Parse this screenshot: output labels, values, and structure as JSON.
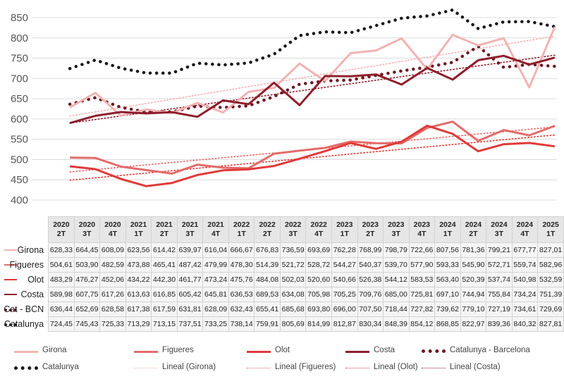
{
  "chart_data": {
    "type": "line",
    "categories": [
      {
        "year": "2020",
        "quarter": "2T"
      },
      {
        "year": "2020",
        "quarter": "3T"
      },
      {
        "year": "2020",
        "quarter": "4T"
      },
      {
        "year": "2021",
        "quarter": "1T"
      },
      {
        "year": "2021",
        "quarter": "2T"
      },
      {
        "year": "2021",
        "quarter": "3T"
      },
      {
        "year": "2021",
        "quarter": "4T"
      },
      {
        "year": "2022",
        "quarter": "1T"
      },
      {
        "year": "2022",
        "quarter": "2T"
      },
      {
        "year": "2022",
        "quarter": "3T"
      },
      {
        "year": "2022",
        "quarter": "4T"
      },
      {
        "year": "2023",
        "quarter": "1T"
      },
      {
        "year": "2023",
        "quarter": "2T"
      },
      {
        "year": "2023",
        "quarter": "3T"
      },
      {
        "year": "2023",
        "quarter": "4T"
      },
      {
        "year": "2024",
        "quarter": "1T"
      },
      {
        "year": "2024",
        "quarter": "2T"
      },
      {
        "year": "2024",
        "quarter": "3T"
      },
      {
        "year": "2024",
        "quarter": "4T"
      },
      {
        "year": "2025",
        "quarter": "1T"
      }
    ],
    "ylim": [
      400,
      850
    ],
    "yticks": [
      "400",
      "450",
      "500",
      "550",
      "600",
      "650",
      "700",
      "750",
      "800",
      "850"
    ],
    "grid": true,
    "legend_position": "bottom",
    "series": [
      {
        "name": "Girona",
        "table_label": "Girona",
        "color": "#f2b3b3",
        "style": "solid",
        "trend": true,
        "values": [
          628.33,
          664.45,
          608.09,
          623.56,
          614.42,
          639.97,
          616.04,
          666.67,
          676.83,
          736.59,
          693.69,
          762.28,
          768.99,
          798.79,
          722.66,
          807.56,
          781.36,
          799.21,
          677.77,
          827.01
        ],
        "labels": [
          "628,33",
          "664,45",
          "608,09",
          "623,56",
          "614,42",
          "639,97",
          "616,04",
          "666,67",
          "676,83",
          "736,59",
          "693,69",
          "762,28",
          "768,99",
          "798,79",
          "722,66",
          "807,56",
          "781,36",
          "799,21",
          "677,77",
          "827,01"
        ]
      },
      {
        "name": "Figueres",
        "table_label": "Figueres",
        "color": "#e36b6b",
        "style": "solid",
        "trend": true,
        "values": [
          504.61,
          503.9,
          482.59,
          473.88,
          465.41,
          487.42,
          479.99,
          478.3,
          514.39,
          521.72,
          528.72,
          544.27,
          540.37,
          539.7,
          577.9,
          593.33,
          545.9,
          572.71,
          559.74,
          582.96
        ],
        "labels": [
          "504,61",
          "503,90",
          "482,59",
          "473,88",
          "465,41",
          "487,42",
          "479,99",
          "478,30",
          "514,39",
          "521,72",
          "528,72",
          "544,27",
          "540,37",
          "539,70",
          "577,90",
          "593,33",
          "545,90",
          "572,71",
          "559,74",
          "582,96"
        ]
      },
      {
        "name": "Olot",
        "table_label": "Olot",
        "color": "#e03a3a",
        "style": "solid",
        "trend": true,
        "values": [
          483.29,
          476.27,
          452.06,
          434.22,
          442.3,
          461.77,
          473.24,
          475.76,
          484.08,
          502.03,
          520.6,
          540.66,
          526.38,
          544.12,
          583.53,
          563.4,
          520.39,
          537.74,
          540.98,
          532.59
        ],
        "labels": [
          "483,29",
          "476,27",
          "452,06",
          "434,22",
          "442,30",
          "461,77",
          "473,24",
          "475,76",
          "484,08",
          "502,03",
          "520,60",
          "540,66",
          "526,38",
          "544,12",
          "583,53",
          "563,40",
          "520,39",
          "537,74",
          "540,98",
          "532,59"
        ]
      },
      {
        "name": "Costa",
        "table_label": "Costa",
        "color": "#8e1f2c",
        "style": "solid",
        "trend": true,
        "values": [
          589.98,
          607.75,
          617.26,
          613.63,
          616.85,
          605.42,
          645.81,
          636.53,
          689.53,
          634.08,
          705.98,
          705.25,
          709.76,
          685.0,
          725.81,
          697.1,
          744.94,
          755.84,
          734.24,
          751.39
        ],
        "labels": [
          "589,98",
          "607,75",
          "617,26",
          "613,63",
          "616,85",
          "605,42",
          "645,81",
          "636,53",
          "689,53",
          "634,08",
          "705,98",
          "705,25",
          "709,76",
          "685,00",
          "725,81",
          "697,10",
          "744,94",
          "755,84",
          "734,24",
          "751,39"
        ]
      },
      {
        "name": "Catalunya - Barcelona",
        "table_label": "Cat - BCN",
        "color": "#6e1a24",
        "style": "dotted",
        "trend": false,
        "values": [
          636.44,
          652.69,
          628.58,
          617.38,
          617.59,
          631.81,
          628.09,
          632.43,
          655.41,
          685.68,
          693.8,
          696.0,
          707.5,
          718.44,
          727.82,
          739.62,
          779.1,
          727.19,
          734.61,
          729.69
        ],
        "labels": [
          "636,44",
          "652,69",
          "628,58",
          "617,38",
          "617,59",
          "631,81",
          "628,09",
          "632,43",
          "655,41",
          "685,68",
          "693,80",
          "696,00",
          "707,50",
          "718,44",
          "727,82",
          "739,62",
          "779,10",
          "727,19",
          "734,61",
          "729,69"
        ]
      },
      {
        "name": "Catalunya",
        "table_label": "Catalunya",
        "color": "#1a1a1a",
        "style": "dotted",
        "trend": false,
        "values": [
          724.45,
          745.43,
          725.33,
          713.29,
          713.15,
          737.51,
          733.25,
          738.14,
          759.91,
          805.69,
          814.99,
          812.87,
          830.34,
          848.39,
          854.12,
          868.85,
          822.97,
          839.36,
          840.32,
          827.81
        ],
        "labels": [
          "724,45",
          "745,43",
          "725,33",
          "713,29",
          "713,15",
          "737,51",
          "733,25",
          "738,14",
          "759,91",
          "805,69",
          "814,99",
          "812,87",
          "830,34",
          "848,39",
          "854,12",
          "868,85",
          "822,97",
          "839,36",
          "840,32",
          "827,81"
        ]
      }
    ]
  },
  "legend": [
    {
      "label": "Girona",
      "color": "#f2b3b3",
      "style": "solid"
    },
    {
      "label": "Figueres",
      "color": "#e36b6b",
      "style": "solid"
    },
    {
      "label": "Olot",
      "color": "#e03a3a",
      "style": "solid"
    },
    {
      "label": "Costa",
      "color": "#8e1f2c",
      "style": "solid"
    },
    {
      "label": "Catalunya - Barcelona",
      "color": "#6e1a24",
      "style": "dotted"
    },
    {
      "label": "Catalunya",
      "color": "#1a1a1a",
      "style": "dotted"
    },
    {
      "label": "Lineal (Girona)",
      "color": "#f2b3b3",
      "style": "trend"
    },
    {
      "label": "Lineal (Figueres)",
      "color": "#e36b6b",
      "style": "trend"
    },
    {
      "label": "Lineal (Olot)",
      "color": "#e03a3a",
      "style": "trend"
    },
    {
      "label": "Lineal (Costa)",
      "color": "#8e1f2c",
      "style": "trend"
    }
  ]
}
